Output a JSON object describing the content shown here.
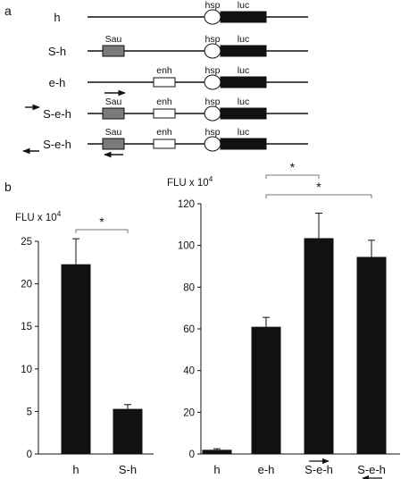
{
  "figure": {
    "panel_a_label": "a",
    "panel_b_label": "b"
  },
  "constructs": {
    "rows": [
      {
        "name": "h",
        "elements": [
          "hsp",
          "luc"
        ],
        "arrow_top": false,
        "arrow_bottom": false,
        "arrow_left": false,
        "arrow_name": false
      },
      {
        "name": "S-h",
        "elements": [
          "Sau",
          "hsp",
          "luc"
        ],
        "arrow_top": false,
        "arrow_bottom": false,
        "arrow_left": false,
        "arrow_name": false
      },
      {
        "name": "e-h",
        "elements": [
          "enh",
          "hsp",
          "luc"
        ],
        "arrow_top": false,
        "arrow_bottom": false,
        "arrow_left": false,
        "arrow_name": false
      },
      {
        "name": "S-e-h",
        "elements": [
          "Sau",
          "enh",
          "hsp",
          "luc"
        ],
        "arrow_top": true,
        "arrow_bottom": false,
        "arrow_left": true,
        "arrow_name": false
      },
      {
        "name": "S-e-h",
        "elements": [
          "Sau",
          "enh",
          "hsp",
          "luc"
        ],
        "arrow_top": false,
        "arrow_bottom": true,
        "arrow_left": false,
        "arrow_name": true
      }
    ],
    "element_labels": {
      "sau": "Sau",
      "enh": "enh",
      "hsp": "hsp",
      "luc": "luc"
    },
    "colors": {
      "sau": "#7a7a7a",
      "enh": "#ffffff",
      "hsp": "#ffffff",
      "luc": "#111111"
    }
  },
  "chart_data": [
    {
      "type": "bar",
      "ylabel_base": "FLU x 10",
      "ylabel_exp": "4",
      "categories": [
        "h",
        "S-h"
      ],
      "values": [
        22.3,
        5.3
      ],
      "errors": [
        3.0,
        0.5
      ],
      "ylim": [
        0,
        25
      ],
      "yticks": [
        0,
        5,
        10,
        15,
        20,
        25
      ],
      "significance": [
        {
          "from": 0,
          "to": 1,
          "label": "*"
        }
      ],
      "bar_color": "#111111"
    },
    {
      "type": "bar",
      "ylabel_base": "FLU x 10",
      "ylabel_exp": "4",
      "categories": [
        "h",
        "e-h",
        "S-e-h",
        "S-e-h"
      ],
      "values": [
        2,
        61,
        103.5,
        94.5
      ],
      "errors": [
        0.5,
        4.5,
        12,
        8
      ],
      "ylim": [
        0,
        120
      ],
      "yticks": [
        0,
        20,
        40,
        60,
        80,
        100,
        120
      ],
      "significance": [
        {
          "from": 1,
          "to": 2,
          "label": "*"
        },
        {
          "from": 1,
          "to": 3,
          "label": "*"
        }
      ],
      "category_arrows": [
        "",
        "",
        "right-below",
        "left-below"
      ],
      "bar_color": "#111111"
    }
  ]
}
